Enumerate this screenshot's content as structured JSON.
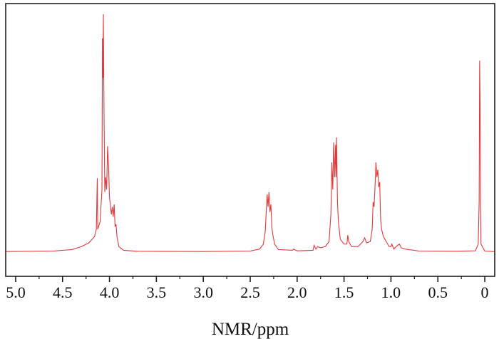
{
  "chart_data": {
    "type": "line",
    "xlabel": "NMR/ppm",
    "xlim": [
      5.106,
      -0.106
    ],
    "ylim": [
      -1,
      10
    ],
    "xticks": [
      {
        "value": 5,
        "label": "5.0"
      },
      4.5,
      {
        "value": 4,
        "label": "4.0"
      },
      3.5,
      {
        "value": 3,
        "label": "3.0"
      },
      2.5,
      {
        "value": 2,
        "label": "2.0"
      },
      1.5,
      {
        "value": 1,
        "label": "1.0"
      },
      0.5,
      0
    ],
    "series": [
      {
        "color": "#e0393b",
        "x": [
          5.1,
          4.6,
          4.4,
          4.3,
          4.22,
          4.16,
          4.14,
          4.13,
          4.125,
          4.1,
          4.08,
          4.075,
          4.07,
          4.065,
          4.06,
          4.05,
          4.04,
          4.03,
          4.02,
          4.01,
          4.0,
          3.98,
          3.97,
          3.96,
          3.95,
          3.94,
          3.93,
          3.92,
          3.9,
          3.85,
          3.7,
          3.0,
          2.5,
          2.4,
          2.36,
          2.34,
          2.32,
          2.31,
          2.3,
          2.29,
          2.28,
          2.27,
          2.26,
          2.24,
          2.2,
          2.05,
          2.04,
          2.0,
          1.83,
          1.82,
          1.8,
          1.78,
          1.75,
          1.7,
          1.66,
          1.64,
          1.63,
          1.62,
          1.61,
          1.6,
          1.59,
          1.585,
          1.58,
          1.57,
          1.56,
          1.54,
          1.5,
          1.47,
          1.46,
          1.45,
          1.42,
          1.35,
          1.3,
          1.28,
          1.26,
          1.22,
          1.2,
          1.19,
          1.18,
          1.17,
          1.16,
          1.15,
          1.14,
          1.13,
          1.12,
          1.11,
          1.1,
          1.08,
          1.05,
          1.02,
          1.0,
          0.99,
          0.97,
          0.93,
          0.91,
          0.89,
          0.85,
          0.7,
          0.3,
          0.1,
          0.07,
          0.06,
          0.055,
          0.05,
          0.045,
          0.04,
          0.0,
          -0.1
        ],
        "values": [
          0,
          0.02,
          0.08,
          0.2,
          0.35,
          0.6,
          0.9,
          2.96,
          0.9,
          1.2,
          2.5,
          8.6,
          7.0,
          9.57,
          6.5,
          2.4,
          3.0,
          2.5,
          4.25,
          3.5,
          2.2,
          1.5,
          1.8,
          1.4,
          1.9,
          1.0,
          1.1,
          0.6,
          0.2,
          0.05,
          0.01,
          0,
          0.02,
          0.1,
          0.3,
          0.8,
          2.3,
          1.8,
          2.4,
          1.6,
          1.9,
          1.0,
          0.7,
          0.3,
          0.08,
          0.05,
          0.1,
          0.03,
          0.05,
          0.25,
          0.1,
          0.2,
          0.15,
          0.2,
          0.4,
          1.5,
          3.6,
          2.5,
          4.4,
          3.0,
          4.3,
          3.0,
          4.6,
          2.0,
          1.2,
          0.5,
          0.3,
          0.3,
          0.66,
          0.4,
          0.2,
          0.2,
          0.4,
          0.55,
          0.35,
          0.4,
          0.9,
          2.0,
          1.8,
          2.6,
          3.6,
          3.0,
          3.3,
          2.6,
          2.8,
          1.3,
          0.9,
          0.6,
          0.4,
          0.2,
          0.2,
          0.3,
          0.1,
          0.25,
          0.3,
          0.15,
          0.1,
          0.02,
          0.01,
          0.03,
          0.3,
          2.0,
          7.7,
          6.0,
          2.0,
          0.3,
          0.02,
          0
        ]
      }
    ]
  }
}
